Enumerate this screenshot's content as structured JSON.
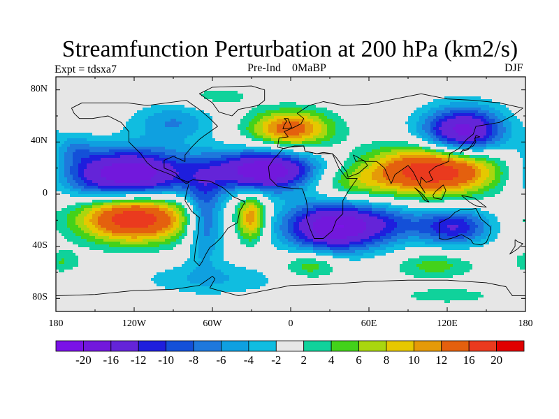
{
  "title": "Streamfunction Perturbation at 200 hPa (km2/s)",
  "left_label": "Expt = tdsxa7",
  "center_label": "Pre-Ind    0MaBP",
  "right_label": "DJF",
  "lat_labels": [
    "80N",
    "40N",
    "0",
    "40S",
    "80S"
  ],
  "lon_labels": [
    "180",
    "120W",
    "60W",
    "0",
    "60E",
    "120E",
    "180"
  ],
  "colorbar": {
    "tick_labels": [
      "-20",
      "-16",
      "-12",
      "-10",
      "-8",
      "-6",
      "-4",
      "-2",
      "2",
      "4",
      "6",
      "8",
      "10",
      "12",
      "16",
      "20"
    ],
    "colors": [
      "#7a12e6",
      "#7218dc",
      "#6424d8",
      "#1e1edd",
      "#1450d8",
      "#1e78dc",
      "#0fa0e0",
      "#10bde0",
      "#e6e6e6",
      "#10d29b",
      "#43d21a",
      "#a9d60f",
      "#e6c800",
      "#e59a08",
      "#e4600e",
      "#ea3a1e",
      "#e00000"
    ]
  },
  "map_data": {
    "domain": {
      "lon": [
        -180,
        180
      ],
      "lat": [
        -90,
        90
      ]
    },
    "projection": "cylindrical equidistant",
    "field": "streamfunction perturbation",
    "units": "km2/s",
    "features": [
      {
        "name": "N Pacific / NE Pacific low",
        "lon": -125,
        "lat": 15,
        "value": -20,
        "sx": 35,
        "sy": 14
      },
      {
        "name": "N Atlantic low",
        "lon": -20,
        "lat": 18,
        "value": -20,
        "sx": 28,
        "sy": 11
      },
      {
        "name": "S Atlantic / S Africa low",
        "lon": 35,
        "lat": -25,
        "value": -20,
        "sx": 28,
        "sy": 13
      },
      {
        "name": "NW Pacific low",
        "lon": 132,
        "lat": 48,
        "value": -18,
        "sx": 22,
        "sy": 13
      },
      {
        "name": "Australia low",
        "lon": 125,
        "lat": -25,
        "value": -12,
        "sx": 20,
        "sy": 10
      },
      {
        "name": "S America low",
        "lon": -66,
        "lat": -18,
        "value": -10,
        "sx": 10,
        "sy": 22
      },
      {
        "name": "SE Pacific high",
        "lon": -120,
        "lat": -18,
        "value": 20,
        "sx": 30,
        "sy": 13
      },
      {
        "name": "Indian Ocean / Asia high",
        "lon": 110,
        "lat": 18,
        "value": 20,
        "sx": 35,
        "sy": 13
      },
      {
        "name": "Europe high",
        "lon": 0,
        "lat": 50,
        "value": 14,
        "sx": 22,
        "sy": 10
      },
      {
        "name": "Arabia high",
        "lon": 45,
        "lat": 8,
        "value": 5,
        "sx": 22,
        "sy": 9
      },
      {
        "name": "South Atlantic high",
        "lon": -30,
        "lat": -18,
        "value": 12,
        "sx": 8,
        "sy": 13
      },
      {
        "name": "Southern Ocean high (Atlantic)",
        "lon": 15,
        "lat": -55,
        "value": 6,
        "sx": 16,
        "sy": 7
      },
      {
        "name": "Southern Ocean high (Indian)",
        "lon": 110,
        "lat": -55,
        "value": 5,
        "sx": 22,
        "sy": 7
      },
      {
        "name": "Southern Ocean high (E Pacific)",
        "lon": -175,
        "lat": -52,
        "value": 4,
        "sx": 10,
        "sy": 6
      },
      {
        "name": "S Pacific low",
        "lon": -60,
        "lat": -65,
        "value": -4,
        "sx": 40,
        "sy": 9
      },
      {
        "name": "Indian Ocean low",
        "lon": 80,
        "lat": -22,
        "value": -4,
        "sx": 18,
        "sy": 10
      },
      {
        "name": "Antarctic high",
        "lon": 120,
        "lat": -78,
        "value": 3,
        "sx": 30,
        "sy": 5
      },
      {
        "name": "N Pacific low (Aleutian)",
        "lon": -165,
        "lat": 35,
        "value": -4,
        "sx": 10,
        "sy": 8
      },
      {
        "name": "N America low",
        "lon": -90,
        "lat": 55,
        "value": -6,
        "sx": 22,
        "sy": 10
      },
      {
        "name": "N Atlantic high",
        "lon": -55,
        "lat": 75,
        "value": 3,
        "sx": 20,
        "sy": 6
      }
    ]
  }
}
